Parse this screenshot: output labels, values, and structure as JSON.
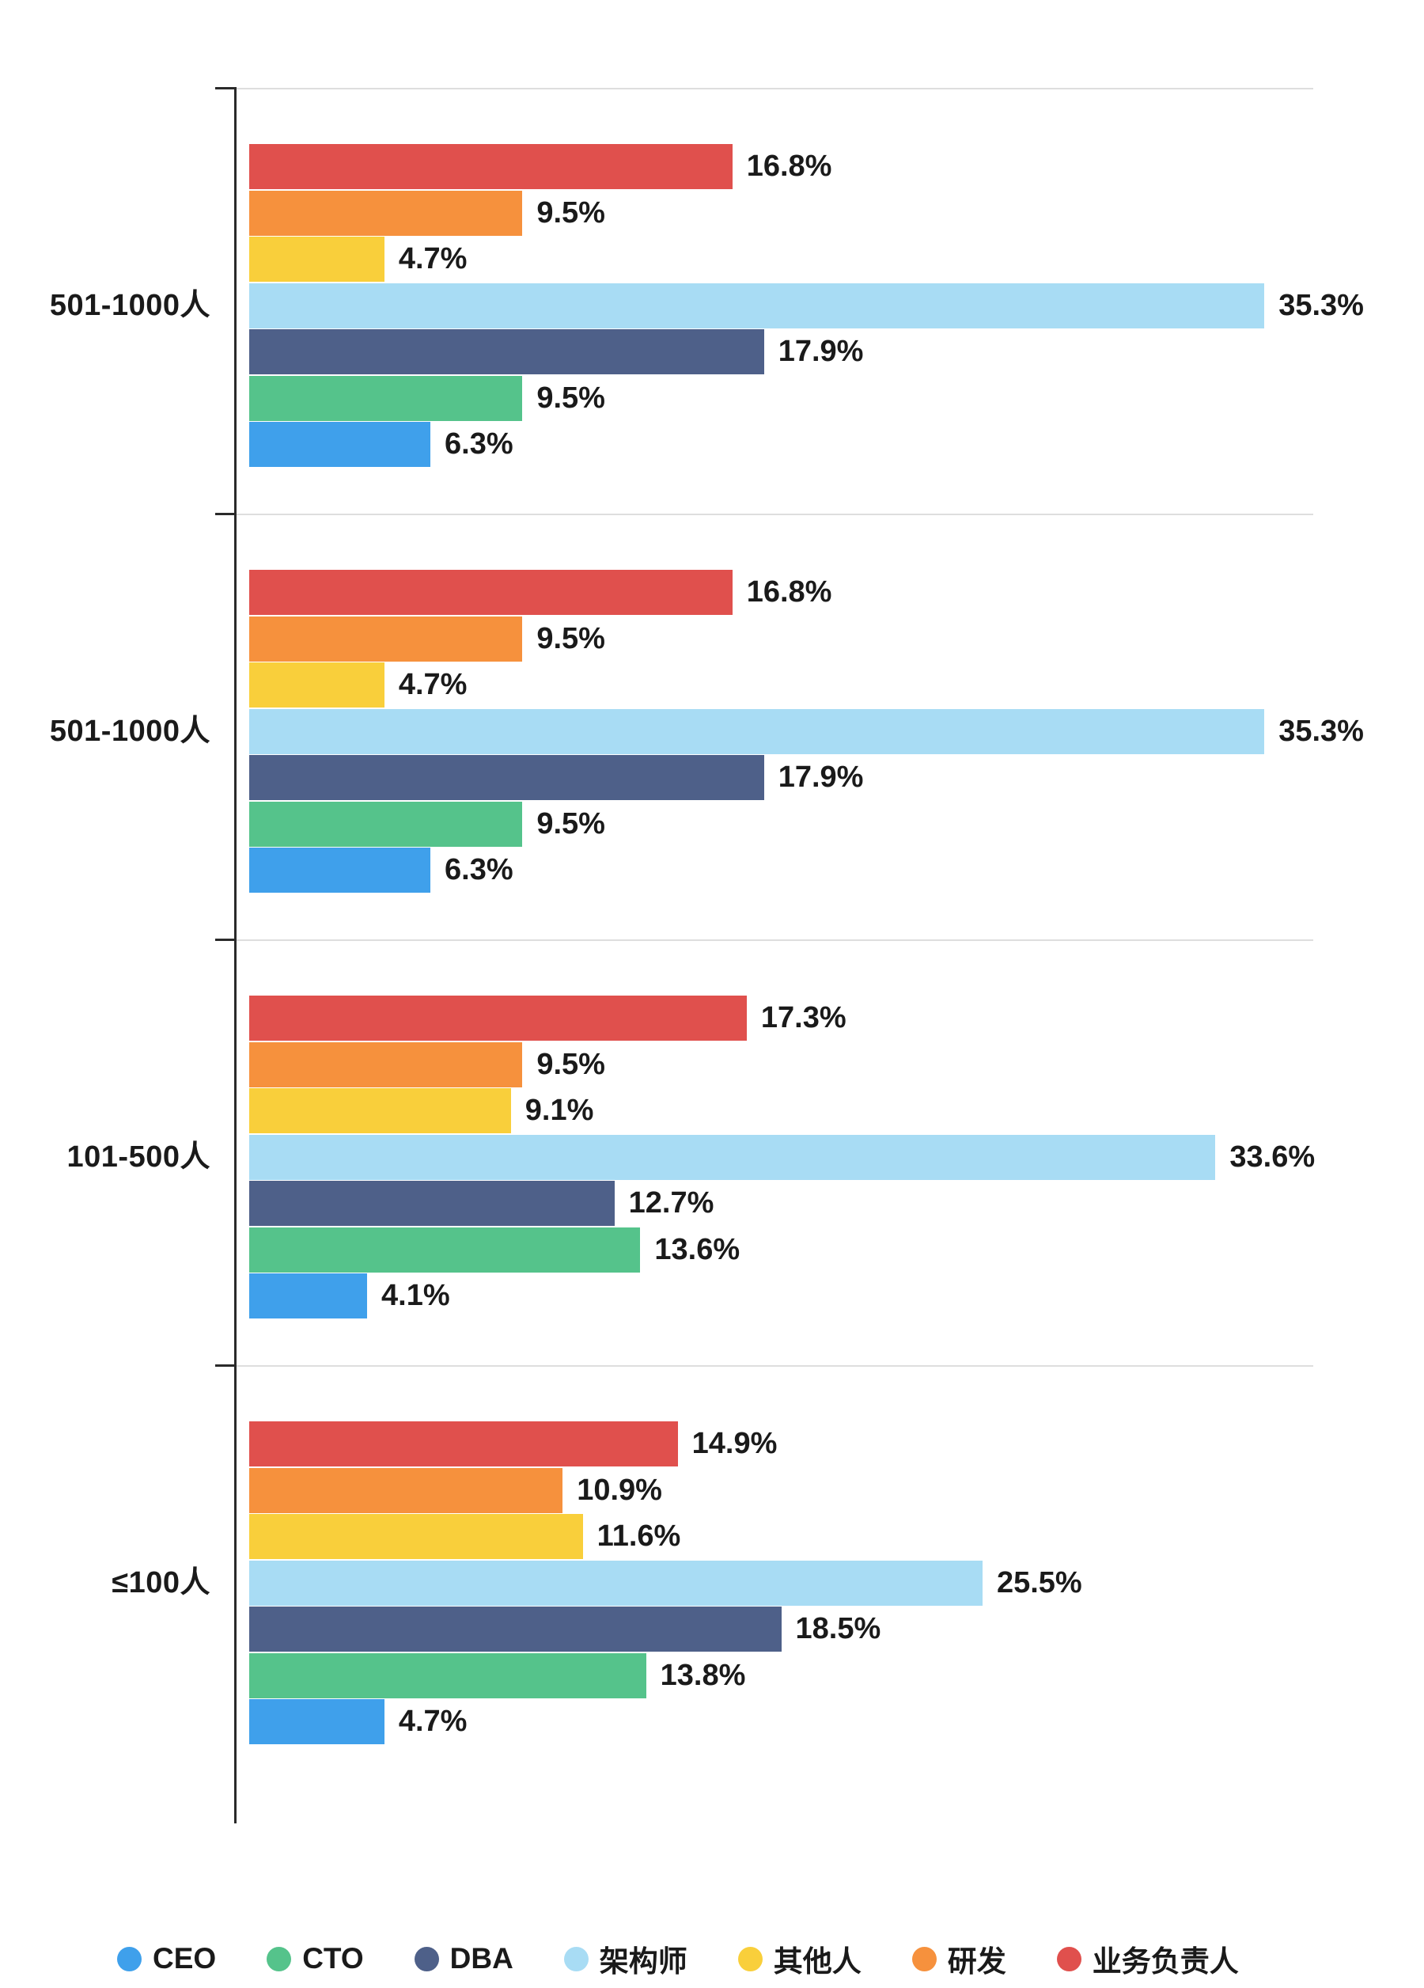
{
  "chart_data": {
    "type": "bar",
    "orientation": "horizontal",
    "title": "",
    "value_suffix": "%",
    "xmax": 37,
    "grid": "group-separators-only",
    "legend_position": "bottom",
    "series_order_top_to_bottom": [
      {
        "key": "业务负责人",
        "id": "business-owner",
        "color": "#E0504D"
      },
      {
        "key": "研发",
        "id": "rd",
        "color": "#F6913D"
      },
      {
        "key": "其他人",
        "id": "others",
        "color": "#F9CF3B"
      },
      {
        "key": "架构师",
        "id": "architect",
        "color": "#A8DCF4"
      },
      {
        "key": "DBA",
        "id": "dba",
        "color": "#4E6089"
      },
      {
        "key": "CTO",
        "id": "cto",
        "color": "#55C38B"
      },
      {
        "key": "CEO",
        "id": "ceo",
        "color": "#3FA0EB"
      }
    ],
    "groups": [
      {
        "label": "501-1000人",
        "values": [
          16.8,
          9.5,
          4.7,
          35.3,
          17.9,
          9.5,
          6.3
        ]
      },
      {
        "label": "501-1000人",
        "values": [
          16.8,
          9.5,
          4.7,
          35.3,
          17.9,
          9.5,
          6.3
        ]
      },
      {
        "label": "101-500人",
        "values": [
          17.3,
          9.5,
          9.1,
          33.6,
          12.7,
          13.6,
          4.1
        ]
      },
      {
        "label": "≤100人",
        "values": [
          14.9,
          10.9,
          11.6,
          25.5,
          18.5,
          13.8,
          4.7
        ]
      }
    ],
    "legend": [
      {
        "label": "CEO",
        "id": "ceo",
        "color": "#3FA0EB"
      },
      {
        "label": "CTO",
        "id": "cto",
        "color": "#55C38B"
      },
      {
        "label": "DBA",
        "id": "dba",
        "color": "#4E6089"
      },
      {
        "label": "架构师",
        "id": "architect",
        "color": "#A8DCF4"
      },
      {
        "label": "其他人",
        "id": "others",
        "color": "#F9CF3B"
      },
      {
        "label": "研发",
        "id": "rd",
        "color": "#F6913D"
      },
      {
        "label": "业务负责人",
        "id": "business-owner",
        "color": "#E0504D"
      }
    ]
  }
}
